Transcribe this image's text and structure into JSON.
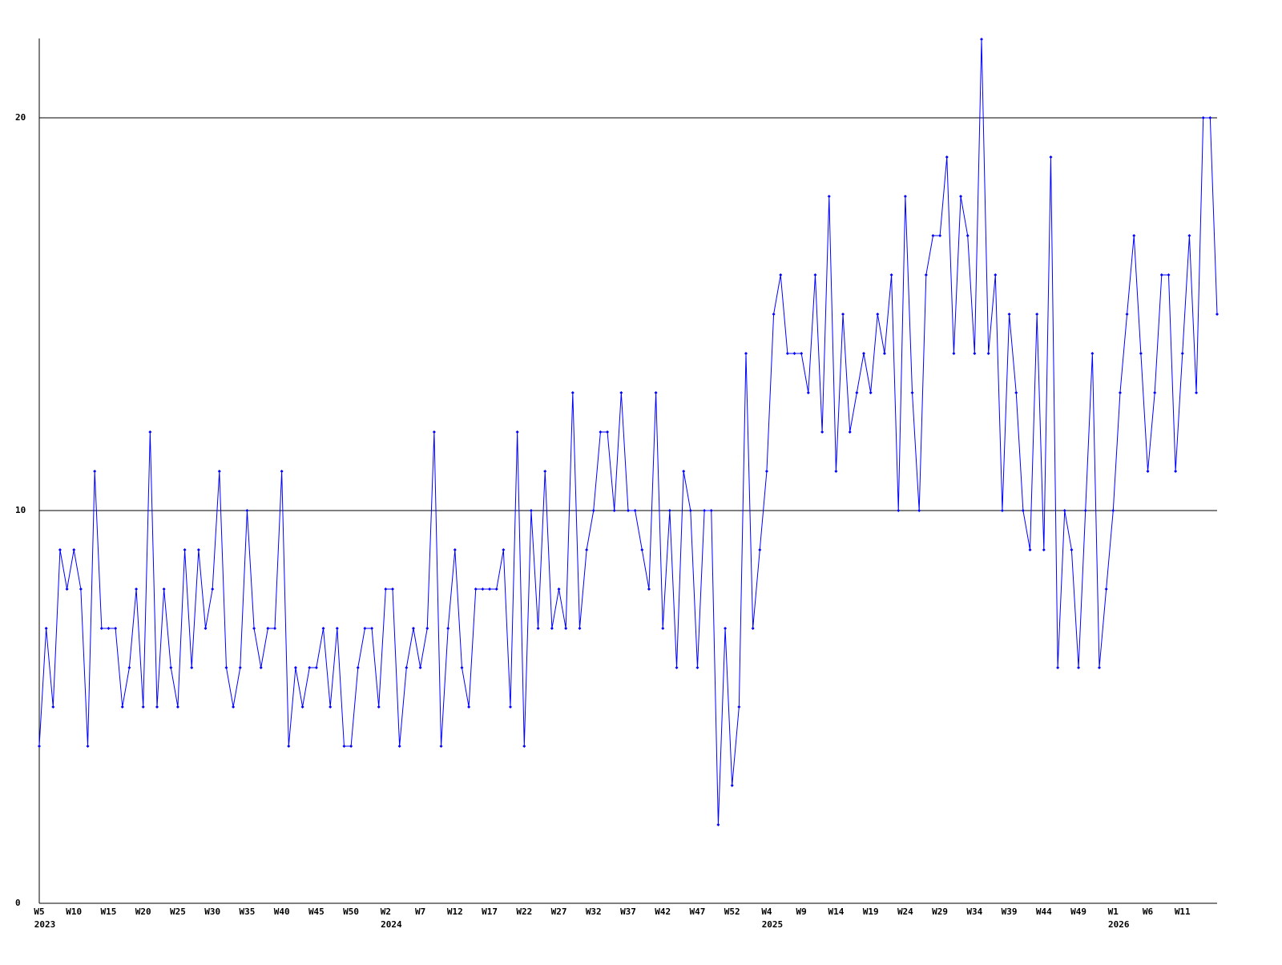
{
  "chart_data": {
    "type": "line",
    "categories": [
      "W5",
      null,
      null,
      null,
      null,
      "W10",
      null,
      null,
      null,
      null,
      "W15",
      null,
      null,
      null,
      null,
      "W20",
      null,
      null,
      null,
      null,
      "W25",
      null,
      null,
      null,
      null,
      "W30",
      null,
      null,
      null,
      null,
      "W35",
      null,
      null,
      null,
      null,
      "W40",
      null,
      null,
      null,
      null,
      "W45",
      null,
      null,
      null,
      null,
      "W50",
      null,
      null,
      null,
      null,
      "W2",
      null,
      null,
      null,
      null,
      "W7",
      null,
      null,
      null,
      null,
      "W12",
      null,
      null,
      null,
      null,
      "W17",
      null,
      null,
      null,
      null,
      "W22",
      null,
      null,
      null,
      null,
      "W27",
      null,
      null,
      null,
      null,
      "W32",
      null,
      null,
      null,
      null,
      "W37",
      null,
      null,
      null,
      null,
      "W42",
      null,
      null,
      null,
      null,
      "W47",
      null,
      null,
      null,
      null,
      "W52",
      null,
      null,
      null,
      null,
      "W4",
      null,
      null,
      null,
      null,
      "W9",
      null,
      null,
      null,
      null,
      "W14",
      null,
      null,
      null,
      null,
      "W19",
      null,
      null,
      null,
      null,
      "W24",
      null,
      null,
      null,
      null,
      "W29",
      null,
      null,
      null,
      null,
      "W34",
      null,
      null,
      null,
      null,
      "W39",
      null,
      null,
      null,
      null,
      "W44",
      null,
      null,
      null,
      null,
      "W49",
      null,
      null,
      null,
      null,
      "W1",
      null,
      null,
      null,
      null,
      "W6",
      null,
      null,
      null,
      null,
      "W11",
      null,
      null,
      null,
      null,
      null
    ],
    "category_years": [
      "2023",
      null,
      null,
      null,
      null,
      null,
      null,
      null,
      null,
      null,
      null,
      null,
      null,
      null,
      null,
      null,
      null,
      null,
      null,
      null,
      null,
      null,
      null,
      null,
      null,
      null,
      null,
      null,
      null,
      null,
      null,
      null,
      null,
      null,
      null,
      null,
      null,
      null,
      null,
      null,
      null,
      null,
      null,
      null,
      null,
      null,
      null,
      null,
      null,
      null,
      "2024",
      null,
      null,
      null,
      null,
      null,
      null,
      null,
      null,
      null,
      null,
      null,
      null,
      null,
      null,
      null,
      null,
      null,
      null,
      null,
      null,
      null,
      null,
      null,
      null,
      null,
      null,
      null,
      null,
      null,
      null,
      null,
      null,
      null,
      null,
      null,
      null,
      null,
      null,
      null,
      null,
      null,
      null,
      null,
      null,
      null,
      null,
      null,
      null,
      null,
      null,
      null,
      null,
      null,
      null,
      "2025",
      null,
      null,
      null,
      null,
      null,
      null,
      null,
      null,
      null,
      null,
      null,
      null,
      null,
      null,
      null,
      null,
      null,
      null,
      null,
      null,
      null,
      null,
      null,
      null,
      null,
      null,
      null,
      null,
      null,
      null,
      null,
      null,
      null,
      null,
      null,
      null,
      null,
      null,
      null,
      null,
      null,
      null,
      null,
      null,
      null,
      null,
      null,
      null,
      null,
      "2026",
      null,
      null,
      null,
      null,
      null,
      null,
      null,
      null,
      null,
      null,
      null,
      null,
      null,
      null,
      null
    ],
    "series": [
      {
        "color": "#0000ff",
        "values": [
          4,
          7,
          5,
          9,
          8,
          9,
          8,
          4,
          11,
          7,
          7,
          7,
          5,
          6,
          8,
          5,
          12,
          5,
          8,
          6,
          5,
          9,
          6,
          9,
          7,
          8,
          11,
          6,
          5,
          6,
          10,
          7,
          6,
          7,
          7,
          11,
          4,
          6,
          5,
          6,
          6,
          7,
          5,
          7,
          4,
          4,
          6,
          7,
          7,
          5,
          8,
          8,
          4,
          6,
          7,
          6,
          7,
          12,
          4,
          7,
          9,
          6,
          5,
          8,
          8,
          8,
          8,
          9,
          5,
          12,
          4,
          10,
          7,
          11,
          7,
          8,
          7,
          13,
          7,
          9,
          10,
          12,
          12,
          10,
          13,
          10,
          10,
          9,
          8,
          13,
          7,
          10,
          6,
          11,
          10,
          6,
          10,
          10,
          2,
          7,
          3,
          5,
          14,
          7,
          9,
          11,
          15,
          16,
          14,
          14,
          14,
          13,
          16,
          12,
          18,
          11,
          15,
          12,
          13,
          14,
          13,
          15,
          14,
          16,
          10,
          18,
          13,
          10,
          16,
          17,
          17,
          19,
          14,
          18,
          17,
          14,
          22,
          14,
          16,
          10,
          15,
          13,
          10,
          9,
          15,
          9,
          19,
          6,
          10,
          9,
          6,
          10,
          14,
          6,
          8,
          10,
          13,
          15,
          17,
          14,
          11,
          13,
          16,
          16,
          11,
          14,
          17,
          13,
          20,
          20,
          15
        ]
      }
    ],
    "ylim": [
      0,
      22
    ],
    "yticks": [
      0,
      10,
      20
    ],
    "grid": true
  }
}
